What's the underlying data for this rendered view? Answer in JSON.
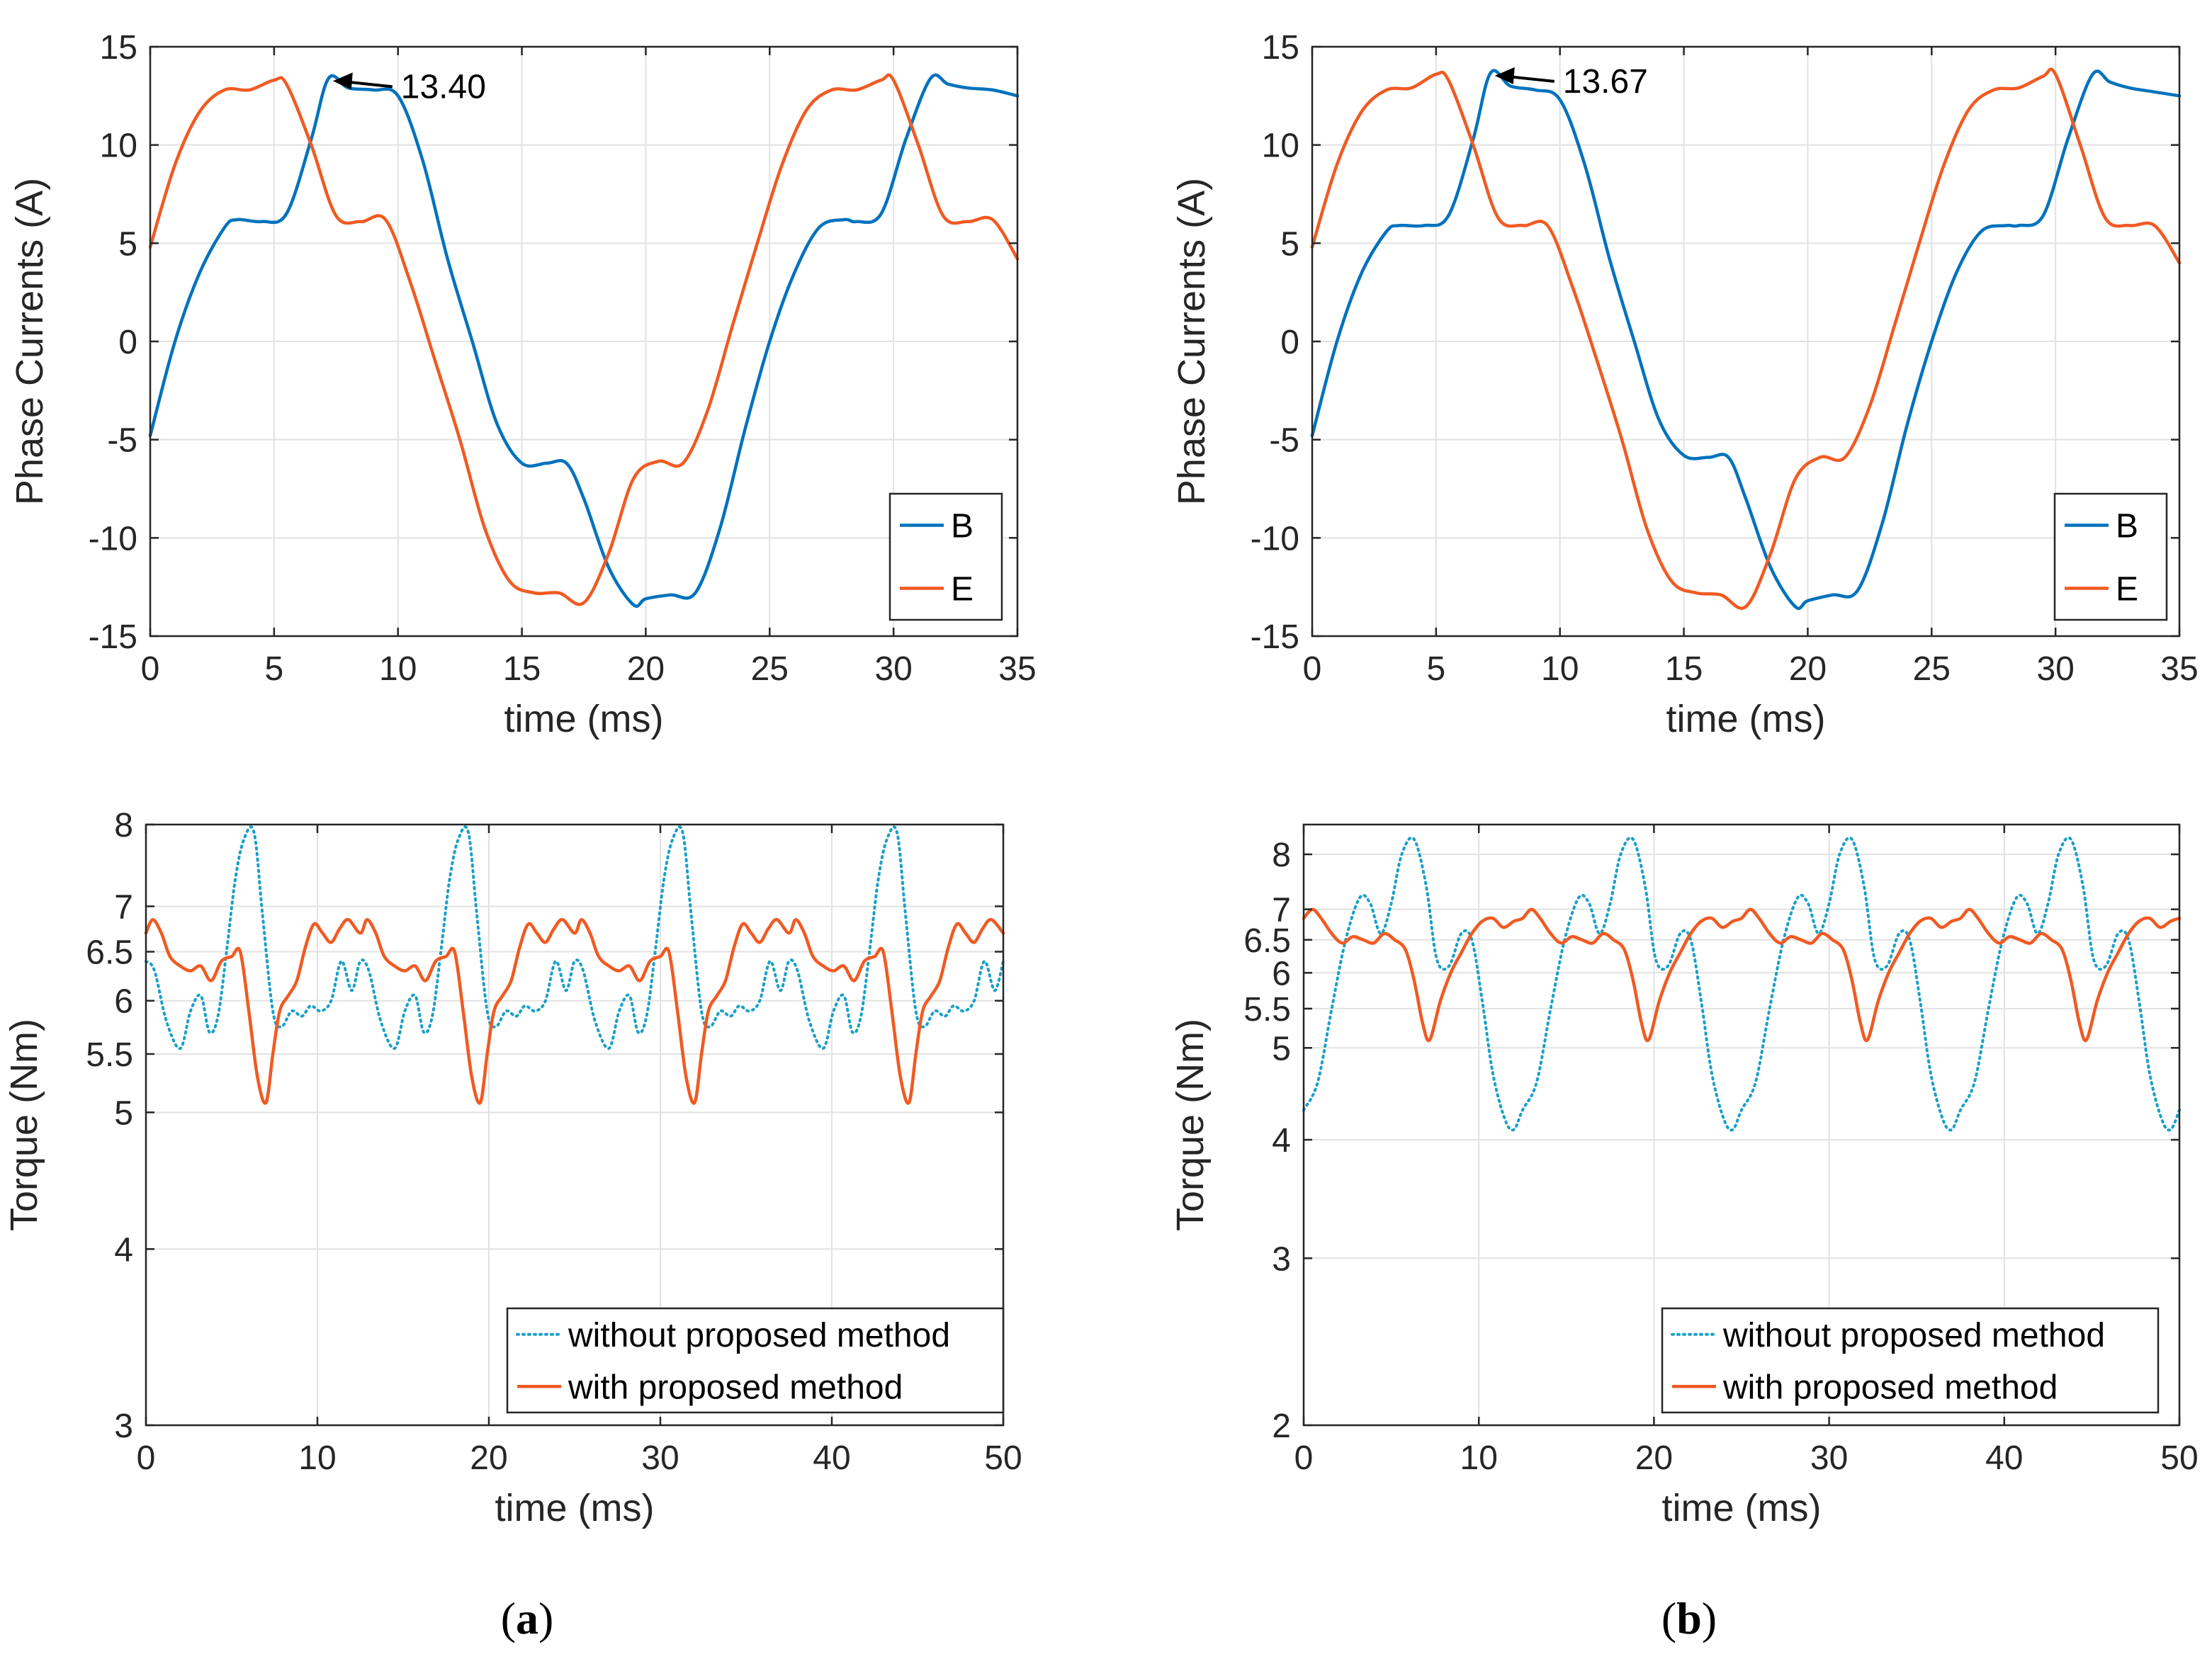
{
  "panel_labels": {
    "a": "a",
    "b": "b"
  },
  "colors": {
    "B": "#0072BD",
    "E": "#F05A22",
    "without": "#1AA0C8",
    "with": "#F05A22",
    "axis": "#262626",
    "grid": "#E2E2E2"
  },
  "chart_data": [
    {
      "id": "a-top",
      "type": "line",
      "xlabel": "time (ms)",
      "ylabel": "Phase Currents (A)",
      "xlim": [
        0,
        35
      ],
      "ylim": [
        -15,
        15
      ],
      "xticks": [
        0,
        5,
        10,
        15,
        20,
        25,
        30,
        35
      ],
      "yticks": [
        -15,
        -10,
        -5,
        0,
        5,
        10,
        15
      ],
      "grid": true,
      "legend_position": "bottom-right",
      "series": [
        {
          "name": "B",
          "color": "#0072BD",
          "line": "solid",
          "x": [
            0,
            1,
            2,
            3,
            3.5,
            4.5,
            5.5,
            6.5,
            7.2,
            8,
            9,
            10,
            11,
            12,
            13,
            14,
            15,
            16,
            16.8,
            17.5,
            18.5,
            19.5,
            20,
            21,
            22,
            23,
            24,
            25,
            26,
            27,
            28,
            28.5,
            29.5,
            30.5,
            31.5,
            32.2,
            33,
            34,
            35
          ],
          "y": [
            -4.8,
            0,
            3.5,
            5.8,
            6.2,
            6.1,
            6.5,
            10.3,
            13.4,
            12.9,
            12.8,
            12.5,
            9.2,
            4.2,
            0,
            -4.2,
            -6.2,
            -6.2,
            -6.2,
            -8.0,
            -11.5,
            -13.4,
            -13.1,
            -12.9,
            -12.8,
            -9.5,
            -4.5,
            0,
            3.5,
            5.8,
            6.2,
            6.1,
            6.5,
            10.3,
            13.4,
            13.1,
            12.9,
            12.8,
            12.5
          ]
        },
        {
          "name": "E",
          "color": "#F05A22",
          "line": "solid",
          "x": [
            0,
            1,
            2,
            3,
            4,
            5,
            5.5,
            6.5,
            7.5,
            8.5,
            9.5,
            10.5,
            11.5,
            12.5,
            13.5,
            14.5,
            15.5,
            16.5,
            17.5,
            18.5,
            19.5,
            20.5,
            21.5,
            22.5,
            23.5,
            24.5,
            25.5,
            26.5,
            27.5,
            28.5,
            29.5,
            30,
            31,
            32,
            33,
            34,
            35
          ],
          "y": [
            4.8,
            9.0,
            11.7,
            12.8,
            12.8,
            13.3,
            13.1,
            10.0,
            6.4,
            6.1,
            6.2,
            3.0,
            -1.0,
            -5.0,
            -9.5,
            -12.2,
            -12.8,
            -12.8,
            -13.3,
            -10.8,
            -7.0,
            -6.1,
            -6.2,
            -3.5,
            0.8,
            5.0,
            9.0,
            11.8,
            12.8,
            12.8,
            13.3,
            13.3,
            10.0,
            6.4,
            6.1,
            6.2,
            4.2
          ]
        }
      ],
      "annotation": {
        "text": "13.40",
        "x": 7.2,
        "y": 13.4
      }
    },
    {
      "id": "b-top",
      "type": "line",
      "xlabel": "time (ms)",
      "ylabel": "Phase Currents (A)",
      "xlim": [
        0,
        35
      ],
      "ylim": [
        -15,
        15
      ],
      "xticks": [
        0,
        5,
        10,
        15,
        20,
        25,
        30,
        35
      ],
      "yticks": [
        -15,
        -10,
        -5,
        0,
        5,
        10,
        15
      ],
      "grid": true,
      "legend_position": "bottom-right",
      "series": [
        {
          "name": "B",
          "color": "#0072BD",
          "line": "solid",
          "x": [
            0,
            1,
            2,
            3,
            3.5,
            4.5,
            5.5,
            6.5,
            7.2,
            8,
            9,
            10,
            11,
            12,
            13,
            14,
            15,
            16,
            16.8,
            17.5,
            18.5,
            19.5,
            20,
            21,
            22,
            23,
            24,
            25,
            26,
            27,
            28,
            28.5,
            29.5,
            30.5,
            31.5,
            32.2,
            33,
            34,
            35
          ],
          "y": [
            -4.8,
            0,
            3.5,
            5.6,
            5.9,
            5.9,
            6.4,
            10.3,
            13.67,
            13.0,
            12.8,
            12.3,
            9.0,
            4.2,
            0,
            -4.0,
            -5.8,
            -5.9,
            -5.9,
            -8.0,
            -11.5,
            -13.5,
            -13.2,
            -12.9,
            -12.7,
            -9.3,
            -4.3,
            0,
            3.5,
            5.6,
            5.9,
            5.9,
            6.4,
            10.3,
            13.6,
            13.2,
            12.9,
            12.7,
            12.5
          ]
        },
        {
          "name": "E",
          "color": "#F05A22",
          "line": "solid",
          "x": [
            0,
            1,
            2,
            3,
            4,
            5,
            5.5,
            6.5,
            7.5,
            8.5,
            9.5,
            10.5,
            11.5,
            12.5,
            13.5,
            14.5,
            15.5,
            16.5,
            17.5,
            18.5,
            19.5,
            20.5,
            21.5,
            22.5,
            23.5,
            24.5,
            25.5,
            26.5,
            27.5,
            28.5,
            29.5,
            30,
            31,
            32,
            33,
            34,
            35
          ],
          "y": [
            4.8,
            9.0,
            11.7,
            12.8,
            12.9,
            13.6,
            13.3,
            10.0,
            6.3,
            5.9,
            5.9,
            2.8,
            -1.0,
            -5.0,
            -9.5,
            -12.2,
            -12.8,
            -12.9,
            -13.5,
            -10.8,
            -7.0,
            -5.9,
            -5.9,
            -3.3,
            0.8,
            5.0,
            9.0,
            11.8,
            12.8,
            12.9,
            13.5,
            13.6,
            10.0,
            6.3,
            5.9,
            5.9,
            4.0
          ]
        }
      ],
      "annotation": {
        "text": "13.67",
        "x": 7.2,
        "y": 13.67
      }
    },
    {
      "id": "a-bottom",
      "type": "line",
      "xlabel": "time (ms)",
      "ylabel": "Torque (Nm)",
      "xlim": [
        0,
        50
      ],
      "ylim": [
        3,
        8
      ],
      "yscale": "log",
      "xticks": [
        0,
        10,
        20,
        30,
        40,
        50
      ],
      "yticks": [
        3,
        4,
        5,
        5.5,
        6,
        6.5,
        7,
        8
      ],
      "grid": true,
      "legend_position": "bottom-right",
      "period_ms": 12.5,
      "series": [
        {
          "name": "without proposed method",
          "color": "#1AA0C8",
          "line": "dotted",
          "x": [
            0,
            0.5,
            1.2,
            2.0,
            2.6,
            3.2,
            3.7,
            4.2,
            4.7,
            5.2,
            5.7,
            6.3,
            6.8,
            7.4,
            7.9,
            8.5,
            9.1,
            9.6,
            10.2,
            10.8,
            11.4,
            12.0,
            12.5
          ],
          "y": [
            6.4,
            6.3,
            5.8,
            5.55,
            5.9,
            6.05,
            5.7,
            5.85,
            6.5,
            7.3,
            7.8,
            7.9,
            6.9,
            5.9,
            5.75,
            5.9,
            5.85,
            5.95,
            5.9,
            6.0,
            6.4,
            6.1,
            6.4
          ]
        },
        {
          "name": "with proposed method",
          "color": "#F05A22",
          "line": "solid",
          "x": [
            0,
            0.4,
            0.9,
            1.4,
            2.0,
            2.6,
            3.2,
            3.8,
            4.4,
            5.0,
            5.5,
            6.0,
            6.5,
            7.0,
            7.4,
            7.8,
            8.3,
            8.8,
            9.3,
            9.8,
            10.3,
            10.8,
            11.3,
            11.8,
            12.5
          ],
          "y": [
            6.7,
            6.85,
            6.7,
            6.45,
            6.35,
            6.3,
            6.35,
            6.2,
            6.4,
            6.45,
            6.5,
            5.9,
            5.3,
            5.08,
            5.5,
            5.9,
            6.05,
            6.2,
            6.55,
            6.8,
            6.7,
            6.6,
            6.75,
            6.85,
            6.7
          ]
        }
      ]
    },
    {
      "id": "b-bottom",
      "type": "line",
      "xlabel": "time (ms)",
      "ylabel": "Torque (Nm)",
      "xlim": [
        0,
        50
      ],
      "ylim": [
        2,
        8.6
      ],
      "yscale": "log",
      "xticks": [
        0,
        10,
        20,
        30,
        40,
        50
      ],
      "yticks": [
        2,
        3,
        4,
        5,
        5.5,
        6,
        6.5,
        7,
        8
      ],
      "grid": true,
      "legend_position": "bottom-right",
      "period_ms": 12.5,
      "series": [
        {
          "name": "without proposed method",
          "color": "#1AA0C8",
          "line": "dotted",
          "x": [
            0,
            0.8,
            1.6,
            2.4,
            3.2,
            3.8,
            4.4,
            5.0,
            5.6,
            6.3,
            7.0,
            7.6,
            8.3,
            9.0,
            9.6,
            10.2,
            10.8,
            11.5,
            12.0,
            12.5
          ],
          "y": [
            4.3,
            4.6,
            5.5,
            6.5,
            7.2,
            7.1,
            6.6,
            7.1,
            8.0,
            8.3,
            7.4,
            6.2,
            6.1,
            6.6,
            6.5,
            5.6,
            4.7,
            4.2,
            4.1,
            4.3
          ]
        },
        {
          "name": "with proposed method",
          "color": "#F05A22",
          "line": "solid",
          "x": [
            0,
            0.5,
            1.0,
            1.6,
            2.2,
            2.8,
            3.4,
            4.0,
            4.6,
            5.2,
            5.8,
            6.3,
            6.8,
            7.2,
            7.8,
            8.4,
            9.0,
            9.6,
            10.2,
            10.8,
            11.4,
            12.0,
            12.5
          ],
          "y": [
            6.85,
            7.0,
            6.85,
            6.6,
            6.45,
            6.55,
            6.5,
            6.45,
            6.6,
            6.5,
            6.35,
            5.9,
            5.3,
            5.1,
            5.6,
            6.0,
            6.3,
            6.6,
            6.8,
            6.85,
            6.7,
            6.8,
            6.85
          ]
        }
      ]
    }
  ]
}
